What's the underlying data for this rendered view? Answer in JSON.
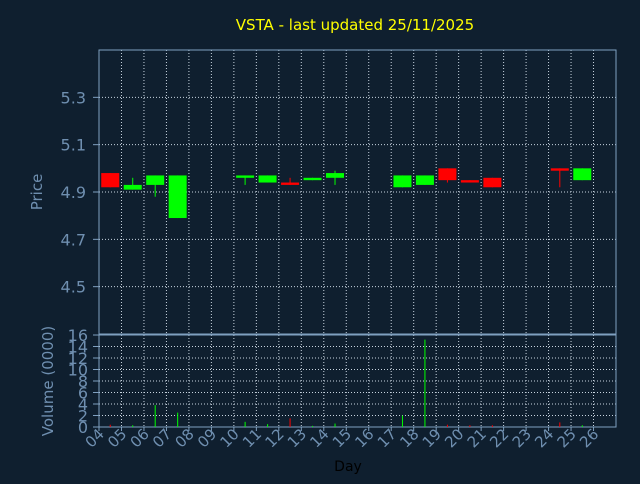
{
  "chart_data": [
    {
      "type": "candlestick",
      "title": "VSTA - last updated 25/11/2025",
      "ylabel": "Price",
      "xlabel": "",
      "ylim": [
        4.3,
        5.5
      ],
      "yticks": [
        "5.3",
        "5.1",
        "4.9",
        "4.7",
        "4.5"
      ],
      "ytick_values": [
        5.3,
        5.1,
        4.9,
        4.7,
        4.5
      ],
      "grid": true,
      "candles": [
        {
          "day": "04",
          "open": 4.98,
          "close": 4.92,
          "high": 4.98,
          "low": 4.92
        },
        {
          "day": "05",
          "open": 4.91,
          "close": 4.93,
          "high": 4.96,
          "low": 4.91
        },
        {
          "day": "06",
          "open": 4.93,
          "close": 4.97,
          "high": 4.97,
          "low": 4.88
        },
        {
          "day": "07",
          "open": 4.79,
          "close": 4.97,
          "high": 4.97,
          "low": 4.79
        },
        {
          "day": "10",
          "open": 4.96,
          "close": 4.97,
          "high": 4.97,
          "low": 4.93
        },
        {
          "day": "11",
          "open": 4.94,
          "close": 4.97,
          "high": 4.97,
          "low": 4.94
        },
        {
          "day": "12",
          "open": 4.94,
          "close": 4.93,
          "high": 4.96,
          "low": 4.93
        },
        {
          "day": "13",
          "open": 4.95,
          "close": 4.96,
          "high": 4.96,
          "low": 4.95
        },
        {
          "day": "14",
          "open": 4.96,
          "close": 4.98,
          "high": 4.99,
          "low": 4.93
        },
        {
          "day": "17",
          "open": 4.92,
          "close": 4.97,
          "high": 4.97,
          "low": 4.92
        },
        {
          "day": "18",
          "open": 4.93,
          "close": 4.97,
          "high": 4.97,
          "low": 4.93
        },
        {
          "day": "19",
          "open": 5.0,
          "close": 4.95,
          "high": 5.0,
          "low": 4.94
        },
        {
          "day": "20",
          "open": 4.95,
          "close": 4.94,
          "high": 4.95,
          "low": 4.94
        },
        {
          "day": "21",
          "open": 4.96,
          "close": 4.92,
          "high": 4.96,
          "low": 4.92
        },
        {
          "day": "24",
          "open": 5.0,
          "close": 4.99,
          "high": 5.0,
          "low": 4.92
        },
        {
          "day": "25",
          "open": 4.95,
          "close": 5.0,
          "high": 5.0,
          "low": 4.95
        }
      ],
      "up_color": "#00ff00",
      "down_color": "#ff0000"
    },
    {
      "type": "bar",
      "ylabel": "Volume (0000)",
      "xlabel": "Day",
      "ylim": [
        0,
        16
      ],
      "yticks": [
        "16",
        "14",
        "12",
        "10",
        "8",
        "6",
        "4",
        "2",
        "0"
      ],
      "ytick_values": [
        16,
        14,
        12,
        10,
        8,
        6,
        4,
        2,
        0
      ],
      "categories": [
        "04",
        "05",
        "06",
        "07",
        "08",
        "09",
        "10",
        "11",
        "12",
        "13",
        "14",
        "15",
        "16",
        "17",
        "18",
        "19",
        "20",
        "21",
        "22",
        "23",
        "24",
        "25",
        "26"
      ],
      "bars": [
        {
          "day": "04",
          "value": 0.4,
          "color": "#ff0000"
        },
        {
          "day": "05",
          "value": 0.3,
          "color": "#00ff00"
        },
        {
          "day": "06",
          "value": 3.8,
          "color": "#00ff00"
        },
        {
          "day": "07",
          "value": 2.5,
          "color": "#00ff00"
        },
        {
          "day": "10",
          "value": 0.9,
          "color": "#00ff00"
        },
        {
          "day": "11",
          "value": 0.5,
          "color": "#00ff00"
        },
        {
          "day": "12",
          "value": 1.5,
          "color": "#ff0000"
        },
        {
          "day": "13",
          "value": 0.2,
          "color": "#00ff00"
        },
        {
          "day": "14",
          "value": 0.6,
          "color": "#00ff00"
        },
        {
          "day": "17",
          "value": 2.0,
          "color": "#00ff00"
        },
        {
          "day": "18",
          "value": 15.2,
          "color": "#00ff00"
        },
        {
          "day": "19",
          "value": 0.4,
          "color": "#ff0000"
        },
        {
          "day": "20",
          "value": 0.3,
          "color": "#ff0000"
        },
        {
          "day": "21",
          "value": 0.3,
          "color": "#ff0000"
        },
        {
          "day": "24",
          "value": 0.8,
          "color": "#ff0000"
        },
        {
          "day": "25",
          "value": 0.3,
          "color": "#00ff00"
        }
      ]
    }
  ],
  "colors": {
    "background": "#0f1f2f",
    "title": "#ffff00",
    "axis_text": "#6f8fb0",
    "axis_line": "#7fa0c0",
    "grid": "#c8d4e0"
  }
}
